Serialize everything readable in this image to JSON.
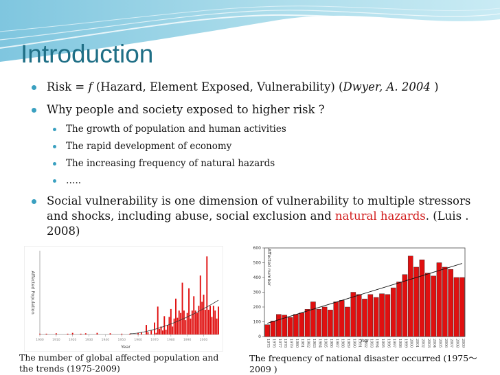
{
  "slide": {
    "title": "Introduction",
    "bullets": [
      {
        "parts": [
          "Risk = ",
          "f",
          " (Hazard, Element Exposed, Vulnerability) (",
          "Dwyer, A. 2004",
          " )"
        ]
      },
      {
        "text": "Why people and society exposed to higher risk ?",
        "sub": [
          "The growth of population and human activities",
          "The rapid development of  economy",
          "The increasing frequency of natural hazards",
          "….."
        ]
      },
      {
        "parts": [
          "Social vulnerability is one dimension of vulnerability to multiple stressors and shocks, including abuse, social exclusion and ",
          "natural hazards",
          ". (Luis . 2008)"
        ]
      }
    ],
    "caption_left": "The number of global affected population and the trends (1975-2009)",
    "caption_right": "The frequency of national disaster occurred (1975～2009 )"
  },
  "colors": {
    "title": "#1f6f86",
    "bullet": "#3aa0c0",
    "highlight": "#d11a1a",
    "bar_fill": "#e01010"
  },
  "chart_data": [
    {
      "type": "bar",
      "ylabel": "Affected Population",
      "xlabel": "Year",
      "x_tick_labels": [
        "1900",
        "1910",
        "1920",
        "1930",
        "1940",
        "1950",
        "1960",
        "1970",
        "1980",
        "1990",
        "2000"
      ],
      "x_range": [
        1900,
        2009
      ],
      "y_relative": [
        [
          1900,
          0.01
        ],
        [
          1904,
          0.01
        ],
        [
          1910,
          0.015
        ],
        [
          1917,
          0.01
        ],
        [
          1920,
          0.02
        ],
        [
          1925,
          0.01
        ],
        [
          1928,
          0.015
        ],
        [
          1935,
          0.02
        ],
        [
          1943,
          0.015
        ],
        [
          1950,
          0.01
        ],
        [
          1955,
          0.01
        ],
        [
          1960,
          0.02
        ],
        [
          1962,
          0.03
        ],
        [
          1965,
          0.12
        ],
        [
          1966,
          0.03
        ],
        [
          1968,
          0.05
        ],
        [
          1970,
          0.15
        ],
        [
          1971,
          0.02
        ],
        [
          1972,
          0.35
        ],
        [
          1973,
          0.07
        ],
        [
          1974,
          0.1
        ],
        [
          1975,
          0.05
        ],
        [
          1976,
          0.23
        ],
        [
          1977,
          0.06
        ],
        [
          1978,
          0.12
        ],
        [
          1979,
          0.22
        ],
        [
          1980,
          0.32
        ],
        [
          1981,
          0.1
        ],
        [
          1982,
          0.2
        ],
        [
          1983,
          0.45
        ],
        [
          1984,
          0.21
        ],
        [
          1985,
          0.3
        ],
        [
          1986,
          0.27
        ],
        [
          1987,
          0.65
        ],
        [
          1988,
          0.3
        ],
        [
          1989,
          0.18
        ],
        [
          1990,
          0.27
        ],
        [
          1991,
          0.58
        ],
        [
          1992,
          0.2
        ],
        [
          1993,
          0.3
        ],
        [
          1994,
          0.48
        ],
        [
          1995,
          0.3
        ],
        [
          1996,
          0.27
        ],
        [
          1997,
          0.36
        ],
        [
          1998,
          0.74
        ],
        [
          1999,
          0.41
        ],
        [
          2000,
          0.5
        ],
        [
          2001,
          0.31
        ],
        [
          2002,
          0.98
        ],
        [
          2003,
          0.31
        ],
        [
          2004,
          0.36
        ],
        [
          2005,
          0.22
        ],
        [
          2006,
          0.36
        ],
        [
          2007,
          0.3
        ],
        [
          2008,
          0.2
        ],
        [
          2009,
          0.35
        ]
      ],
      "trend": "increasing"
    },
    {
      "type": "bar",
      "ylabel": "Affected number",
      "xlabel": "Year",
      "ylim": [
        0,
        600
      ],
      "yticks": [
        0,
        100,
        200,
        300,
        400,
        500,
        600
      ],
      "categories": [
        "1975",
        "1976",
        "1977",
        "1978",
        "1979",
        "1980",
        "1981",
        "1982",
        "1983",
        "1984",
        "1985",
        "1986",
        "1987",
        "1988",
        "1989",
        "1990",
        "1991",
        "1992",
        "1993",
        "1994",
        "1995",
        "1996",
        "1997",
        "1998",
        "1999",
        "2000",
        "2001",
        "2002",
        "2003",
        "2004",
        "2005",
        "2006",
        "2007",
        "2008",
        "2009"
      ],
      "values": [
        80,
        105,
        150,
        145,
        130,
        150,
        160,
        185,
        235,
        185,
        200,
        180,
        235,
        245,
        200,
        300,
        285,
        255,
        285,
        265,
        290,
        285,
        330,
        370,
        420,
        545,
        470,
        520,
        430,
        410,
        500,
        470,
        455,
        400,
        400
      ],
      "trendline": {
        "start": [
          1975,
          90
        ],
        "end": [
          2009,
          495
        ]
      }
    }
  ]
}
